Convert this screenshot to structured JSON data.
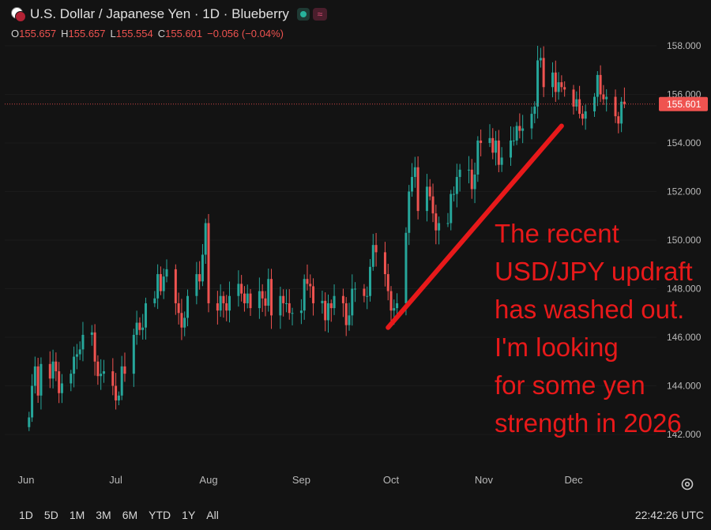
{
  "header": {
    "title": "U.S. Dollar / Japanese Yen · 1D · Blueberry",
    "ohlc": {
      "open_label": "O",
      "open": "155.657",
      "high_label": "H",
      "high": "155.657",
      "low_label": "L",
      "low": "155.554",
      "close_label": "C",
      "close": "155.601",
      "change": "−0.056 (−0.04%)"
    }
  },
  "annotation": "The recent\nUSD/JPY updraft\nhas washed out.\nI'm looking\nfor some yen\nstrength in 2026",
  "footer": {
    "ranges": [
      "1D",
      "5D",
      "1M",
      "3M",
      "6M",
      "YTD",
      "1Y",
      "All"
    ],
    "clock": "22:42:26 UTC"
  },
  "colors": {
    "up": "#26a69a",
    "down": "#ef5350",
    "background": "#131313",
    "annotation": "#e8191a"
  },
  "chart_data": {
    "type": "candlestick",
    "instrument": "USD/JPY",
    "interval": "1D",
    "ylim": [
      141.2,
      159.2
    ],
    "y_ticks": [
      "142.000",
      "144.000",
      "146.000",
      "148.000",
      "150.000",
      "152.000",
      "154.000",
      "156.000",
      "158.000"
    ],
    "x_ticks": [
      "Jun",
      "Jul",
      "Aug",
      "Sep",
      "Oct",
      "Nov",
      "Dec"
    ],
    "last_price": "155.601",
    "trend_line": {
      "from": [
        "2025-09-30",
        146.4
      ],
      "to": [
        "2025-11-27",
        154.7
      ]
    },
    "closes": [
      [
        "2025-06-02",
        142.7
      ],
      [
        "2025-06-03",
        144.0
      ],
      [
        "2025-06-04",
        144.8
      ],
      [
        "2025-06-05",
        143.6
      ],
      [
        "2025-06-06",
        144.9
      ],
      [
        "2025-06-09",
        144.3
      ],
      [
        "2025-06-10",
        145.0
      ],
      [
        "2025-06-11",
        144.6
      ],
      [
        "2025-06-12",
        143.7
      ],
      [
        "2025-06-13",
        144.1
      ],
      [
        "2025-06-16",
        144.5
      ],
      [
        "2025-06-17",
        145.2
      ],
      [
        "2025-06-18",
        145.3
      ],
      [
        "2025-06-19",
        145.5
      ],
      [
        "2025-06-20",
        146.1
      ],
      [
        "2025-06-23",
        146.2
      ],
      [
        "2025-06-24",
        145.0
      ],
      [
        "2025-06-25",
        144.4
      ],
      [
        "2025-06-26",
        144.5
      ],
      [
        "2025-06-27",
        144.6
      ],
      [
        "2025-06-30",
        144.0
      ],
      [
        "2025-07-01",
        143.4
      ],
      [
        "2025-07-02",
        143.6
      ],
      [
        "2025-07-03",
        144.8
      ],
      [
        "2025-07-04",
        144.5
      ],
      [
        "2025-07-07",
        146.1
      ],
      [
        "2025-07-08",
        146.6
      ],
      [
        "2025-07-09",
        146.3
      ],
      [
        "2025-07-10",
        146.4
      ],
      [
        "2025-07-11",
        147.4
      ],
      [
        "2025-07-14",
        147.6
      ],
      [
        "2025-07-15",
        148.6
      ],
      [
        "2025-07-16",
        147.9
      ],
      [
        "2025-07-17",
        148.5
      ],
      [
        "2025-07-18",
        148.8
      ],
      [
        "2025-07-21",
        147.4
      ],
      [
        "2025-07-22",
        147.0
      ],
      [
        "2025-07-23",
        146.4
      ],
      [
        "2025-07-24",
        146.8
      ],
      [
        "2025-07-25",
        147.7
      ],
      [
        "2025-07-28",
        148.6
      ],
      [
        "2025-07-29",
        148.3
      ],
      [
        "2025-07-30",
        149.4
      ],
      [
        "2025-07-31",
        150.7
      ],
      [
        "2025-08-01",
        147.4
      ],
      [
        "2025-08-04",
        147.1
      ],
      [
        "2025-08-05",
        147.7
      ],
      [
        "2025-08-06",
        147.4
      ],
      [
        "2025-08-07",
        147.1
      ],
      [
        "2025-08-08",
        147.7
      ],
      [
        "2025-08-11",
        148.2
      ],
      [
        "2025-08-12",
        147.8
      ],
      [
        "2025-08-13",
        147.4
      ],
      [
        "2025-08-14",
        147.8
      ],
      [
        "2025-08-15",
        147.2
      ],
      [
        "2025-08-18",
        147.9
      ],
      [
        "2025-08-19",
        147.6
      ],
      [
        "2025-08-20",
        147.3
      ],
      [
        "2025-08-21",
        148.4
      ],
      [
        "2025-08-22",
        146.9
      ],
      [
        "2025-08-25",
        147.7
      ],
      [
        "2025-08-26",
        147.4
      ],
      [
        "2025-08-27",
        147.4
      ],
      [
        "2025-08-28",
        147.0
      ],
      [
        "2025-08-29",
        147.0
      ],
      [
        "2025-09-01",
        147.1
      ],
      [
        "2025-09-02",
        148.4
      ],
      [
        "2025-09-03",
        148.2
      ],
      [
        "2025-09-04",
        148.1
      ],
      [
        "2025-09-05",
        147.4
      ],
      [
        "2025-09-08",
        147.5
      ],
      [
        "2025-09-09",
        146.7
      ],
      [
        "2025-09-10",
        147.4
      ],
      [
        "2025-09-11",
        147.2
      ],
      [
        "2025-09-12",
        147.7
      ],
      [
        "2025-09-15",
        147.4
      ],
      [
        "2025-09-16",
        146.5
      ],
      [
        "2025-09-17",
        146.9
      ],
      [
        "2025-09-18",
        148.0
      ],
      [
        "2025-09-19",
        148.0
      ],
      [
        "2025-09-22",
        147.7
      ],
      [
        "2025-09-23",
        147.7
      ],
      [
        "2025-09-24",
        148.9
      ],
      [
        "2025-09-25",
        149.8
      ],
      [
        "2025-09-26",
        149.5
      ],
      [
        "2025-09-29",
        148.6
      ],
      [
        "2025-09-30",
        147.9
      ],
      [
        "2025-10-01",
        147.1
      ],
      [
        "2025-10-02",
        147.2
      ],
      [
        "2025-10-03",
        147.4
      ],
      [
        "2025-10-06",
        150.3
      ],
      [
        "2025-10-07",
        152.0
      ],
      [
        "2025-10-08",
        152.6
      ],
      [
        "2025-10-09",
        153.0
      ],
      [
        "2025-10-10",
        151.2
      ],
      [
        "2025-10-13",
        152.2
      ],
      [
        "2025-10-14",
        151.8
      ],
      [
        "2025-10-15",
        151.1
      ],
      [
        "2025-10-16",
        150.4
      ],
      [
        "2025-10-17",
        150.7
      ],
      [
        "2025-10-20",
        150.7
      ],
      [
        "2025-10-21",
        151.9
      ],
      [
        "2025-10-22",
        151.9
      ],
      [
        "2025-10-23",
        152.6
      ],
      [
        "2025-10-24",
        152.9
      ],
      [
        "2025-10-27",
        152.9
      ],
      [
        "2025-10-28",
        152.1
      ],
      [
        "2025-10-29",
        152.7
      ],
      [
        "2025-10-30",
        154.1
      ],
      [
        "2025-10-31",
        154.0
      ],
      [
        "2025-11-03",
        154.2
      ],
      [
        "2025-11-04",
        153.6
      ],
      [
        "2025-11-05",
        154.1
      ],
      [
        "2025-11-06",
        153.1
      ],
      [
        "2025-11-07",
        153.4
      ],
      [
        "2025-11-10",
        154.1
      ],
      [
        "2025-11-11",
        154.1
      ],
      [
        "2025-11-12",
        154.7
      ],
      [
        "2025-11-13",
        154.5
      ],
      [
        "2025-11-14",
        154.6
      ],
      [
        "2025-11-17",
        155.2
      ],
      [
        "2025-11-18",
        155.5
      ],
      [
        "2025-11-19",
        157.4
      ],
      [
        "2025-11-20",
        157.5
      ],
      [
        "2025-11-21",
        156.3
      ],
      [
        "2025-11-24",
        156.9
      ],
      [
        "2025-11-25",
        156.1
      ],
      [
        "2025-11-26",
        156.5
      ],
      [
        "2025-11-27",
        156.3
      ],
      [
        "2025-11-28",
        156.2
      ],
      [
        "2025-12-01",
        155.5
      ],
      [
        "2025-12-02",
        155.8
      ],
      [
        "2025-12-03",
        155.2
      ],
      [
        "2025-12-04",
        155.0
      ],
      [
        "2025-12-05",
        155.3
      ],
      [
        "2025-12-08",
        155.9
      ],
      [
        "2025-12-09",
        156.8
      ],
      [
        "2025-12-10",
        156.0
      ],
      [
        "2025-12-11",
        155.8
      ],
      [
        "2025-12-12",
        155.9
      ],
      [
        "2025-12-15",
        155.1
      ],
      [
        "2025-12-16",
        154.8
      ],
      [
        "2025-12-17",
        155.7
      ],
      [
        "2025-12-18",
        155.601
      ]
    ]
  }
}
